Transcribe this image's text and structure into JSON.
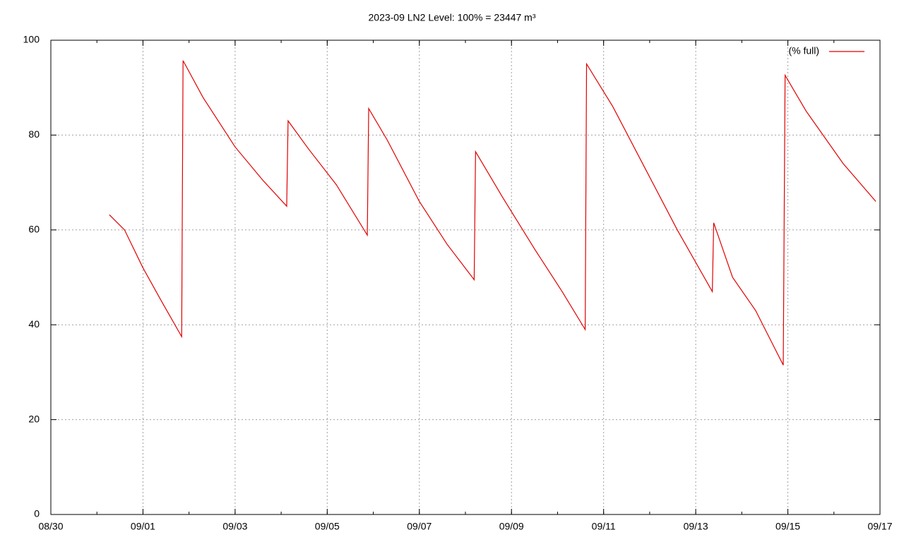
{
  "chart_data": {
    "type": "line",
    "title": "2023-09 LN2 Level: 100% = 23447 m³",
    "x": [
      1.27,
      1.6,
      2.0,
      2.4,
      2.84,
      2.87,
      3.3,
      4.0,
      4.6,
      5.12,
      5.15,
      5.6,
      6.2,
      6.87,
      6.9,
      7.3,
      8.0,
      8.6,
      9.19,
      9.22,
      9.8,
      10.5,
      11.1,
      11.6,
      11.63,
      12.2,
      12.9,
      13.6,
      14.36,
      14.39,
      14.8,
      15.3,
      15.9,
      15.94,
      16.4,
      17.2,
      17.91
    ],
    "series": [
      {
        "name": "(% full)",
        "color": "#e00000",
        "values": [
          63.2,
          60,
          52,
          45,
          37.5,
          95.7,
          88,
          77.5,
          70.5,
          65,
          83,
          77,
          69.5,
          58.9,
          85.6,
          79,
          66,
          57,
          49.5,
          76.5,
          67,
          56,
          47,
          39,
          95,
          86,
          73,
          60,
          47,
          61.5,
          50,
          43,
          31.5,
          92.6,
          85,
          74,
          66
        ]
      }
    ],
    "xlim": [
      0,
      18
    ],
    "xticks": [
      {
        "value": 0,
        "label": "08/30"
      },
      {
        "value": 2,
        "label": "09/01"
      },
      {
        "value": 4,
        "label": "09/03"
      },
      {
        "value": 6,
        "label": "09/05"
      },
      {
        "value": 8,
        "label": "09/07"
      },
      {
        "value": 10,
        "label": "09/09"
      },
      {
        "value": 12,
        "label": "09/11"
      },
      {
        "value": 14,
        "label": "09/13"
      },
      {
        "value": 16,
        "label": "09/15"
      },
      {
        "value": 18,
        "label": "09/17"
      }
    ],
    "ylim": [
      0,
      100
    ],
    "yticks": [
      0,
      20,
      40,
      60,
      80,
      100
    ],
    "grid": true,
    "legend": "top-right"
  }
}
